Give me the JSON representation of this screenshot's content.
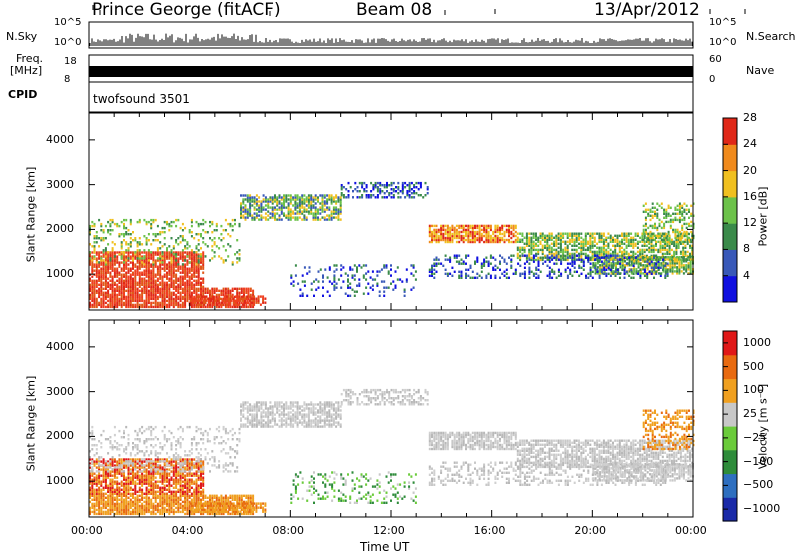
{
  "header": {
    "station": "Prince George (fitACF)",
    "beam": "Beam 08",
    "date": "13/Apr/2012"
  },
  "top_panels": {
    "nsky_label": "N.Sky",
    "nsearch_label": "N.Search",
    "noise_ticks": [
      "10^5",
      "10^0"
    ],
    "freq_label": [
      "Freq.",
      "[MHz]"
    ],
    "freq_ticks": [
      "18",
      "8"
    ],
    "nave_label": "Nave",
    "nave_ticks": [
      "60",
      "0"
    ],
    "cpid_label": "CPID",
    "cpid_value": "twofsound 3501"
  },
  "chart_data": [
    {
      "type": "heatmap",
      "name": "power",
      "ylabel": "Slant Range [km]",
      "xlabel": "",
      "yticks": [
        "1000",
        "2000",
        "3000",
        "4000"
      ],
      "ylim": [
        200,
        4600
      ],
      "colorbar_label": "Power [dB]",
      "colorbar_ticks": [
        "4",
        "8",
        "12",
        "16",
        "20",
        "24",
        "28"
      ],
      "colorbar_colors": [
        "#1010e0",
        "#3858b8",
        "#3a8a4a",
        "#6cc24a",
        "#f0c020",
        "#f08a1c",
        "#e02818"
      ]
    },
    {
      "type": "heatmap",
      "name": "velocity",
      "ylabel": "Slant Range [km]",
      "xlabel": "Time UT",
      "xticks": [
        "00:00",
        "04:00",
        "08:00",
        "12:00",
        "16:00",
        "20:00",
        "00:00"
      ],
      "yticks": [
        "1000",
        "2000",
        "3000",
        "4000"
      ],
      "ylim": [
        200,
        4600
      ],
      "colorbar_label": "Velocity [m s⁻¹]",
      "colorbar_ticks": [
        "1000",
        "500",
        "100",
        "25",
        "−25",
        "−100",
        "−500",
        "−1000"
      ],
      "colorbar_colors": [
        "#1a2aa8",
        "#2e6fc0",
        "#2e8c3a",
        "#6acb3a",
        "#c8c8c8",
        "#f0a020",
        "#e86a10",
        "#e01818"
      ]
    }
  ]
}
